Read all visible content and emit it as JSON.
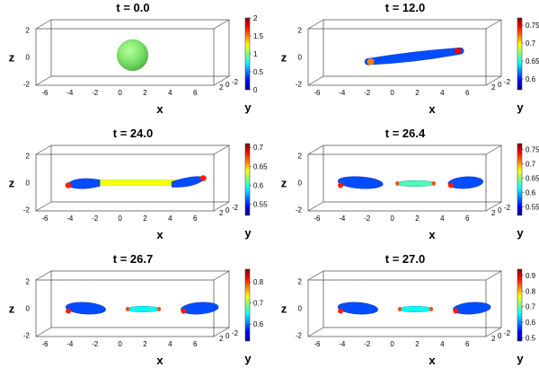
{
  "chart_data": [
    {
      "type": "3d-surface",
      "title": "t = 0.0",
      "xlabel": "x",
      "zlabel": "z",
      "colorbar_label": "y",
      "x_ticks": [
        "-6",
        "-4",
        "-2",
        "0",
        "2",
        "4",
        "6"
      ],
      "z_ticks": [
        "2",
        "0",
        "-2"
      ],
      "y_ticks": [
        "2",
        "0",
        "-2"
      ],
      "colorbar_ticks": [
        "2",
        "1.5",
        "1",
        "0.5",
        "0"
      ],
      "colorbar_range": [
        0,
        2
      ],
      "shape": "sphere",
      "segments": [
        {
          "x0": -1.1,
          "x1": 1.1,
          "level": 0.62,
          "center_z": 0.0
        }
      ]
    },
    {
      "type": "3d-surface",
      "title": "t = 12.0",
      "xlabel": "x",
      "zlabel": "z",
      "colorbar_label": "y",
      "x_ticks": [
        "-6",
        "-4",
        "-2",
        "0",
        "2",
        "4",
        "6"
      ],
      "z_ticks": [
        "2",
        "0",
        "-2"
      ],
      "y_ticks": [
        "2",
        "0",
        "-2"
      ],
      "colorbar_ticks": [
        "0.75",
        "0.7",
        "0.65",
        "0.6"
      ],
      "colorbar_range": [
        0.57,
        0.77
      ],
      "shape": "filament",
      "segments": [
        {
          "x0": -2.8,
          "x1": 4.6,
          "level": 0.2,
          "center_z": -0.1
        }
      ]
    },
    {
      "type": "3d-surface",
      "title": "t = 24.0",
      "xlabel": "x",
      "zlabel": "z",
      "colorbar_label": "y",
      "x_ticks": [
        "-6",
        "-4",
        "-2",
        "0",
        "2",
        "4",
        "6"
      ],
      "z_ticks": [
        "2",
        "0",
        "-2"
      ],
      "y_ticks": [
        "2",
        "0",
        "-2"
      ],
      "colorbar_ticks": [
        "0.7",
        "0.65",
        "0.6",
        "0.55"
      ],
      "colorbar_range": [
        0.52,
        0.71
      ],
      "shape": "dumbbell",
      "segments": [
        {
          "x0": -5.2,
          "x1": 6.0,
          "level": 0.6,
          "center_z": 0.0
        }
      ]
    },
    {
      "type": "3d-surface",
      "title": "t = 26.4",
      "xlabel": "x",
      "zlabel": "z",
      "colorbar_label": "y",
      "x_ticks": [
        "-6",
        "-4",
        "-2",
        "0",
        "2",
        "4",
        "6"
      ],
      "z_ticks": [
        "2",
        "0",
        "-2"
      ],
      "y_ticks": [
        "2",
        "0",
        "-2"
      ],
      "colorbar_ticks": [
        "0.75",
        "0.7",
        "0.65",
        "0.6",
        "0.55"
      ],
      "colorbar_range": [
        0.52,
        0.77
      ],
      "shape": "drops",
      "segments": [
        {
          "x0": -5.2,
          "x1": -1.6,
          "level": 0.2,
          "center_z": 0.0
        },
        {
          "x0": -0.6,
          "x1": 2.6,
          "level": 0.45,
          "center_z": 0.0
        },
        {
          "x0": 3.6,
          "x1": 6.4,
          "level": 0.2,
          "center_z": 0.0
        }
      ]
    },
    {
      "type": "3d-surface",
      "title": "t = 26.7",
      "xlabel": "x",
      "zlabel": "z",
      "colorbar_label": "y",
      "x_ticks": [
        "-6",
        "-4",
        "-2",
        "0",
        "2",
        "4",
        "6"
      ],
      "z_ticks": [
        "2",
        "0",
        "-2"
      ],
      "y_ticks": [
        "2",
        "0",
        "-2"
      ],
      "colorbar_ticks": [
        "0.8",
        "0.7",
        "0.6"
      ],
      "colorbar_range": [
        0.52,
        0.86
      ],
      "shape": "drops",
      "segments": [
        {
          "x0": -5.2,
          "x1": -2.0,
          "level": 0.2,
          "center_z": 0.0
        },
        {
          "x0": -0.4,
          "x1": 2.4,
          "level": 0.38,
          "center_z": 0.0
        },
        {
          "x0": 4.0,
          "x1": 7.0,
          "level": 0.2,
          "center_z": 0.0
        }
      ]
    },
    {
      "type": "3d-surface",
      "title": "t = 27.0",
      "xlabel": "x",
      "zlabel": "z",
      "colorbar_label": "y",
      "x_ticks": [
        "-6",
        "-4",
        "-2",
        "0",
        "2",
        "4",
        "6"
      ],
      "z_ticks": [
        "2",
        "0",
        "-2"
      ],
      "y_ticks": [
        "2",
        "0",
        "-2"
      ],
      "colorbar_ticks": [
        "0.9",
        "0.8",
        "0.7",
        "0.6",
        "0.5"
      ],
      "colorbar_range": [
        0.48,
        0.94
      ],
      "shape": "drops",
      "segments": [
        {
          "x0": -5.2,
          "x1": -2.0,
          "level": 0.2,
          "center_z": 0.0
        },
        {
          "x0": -0.4,
          "x1": 2.4,
          "level": 0.38,
          "center_z": 0.0
        },
        {
          "x0": 4.0,
          "x1": 7.0,
          "level": 0.2,
          "center_z": 0.0
        }
      ]
    }
  ]
}
